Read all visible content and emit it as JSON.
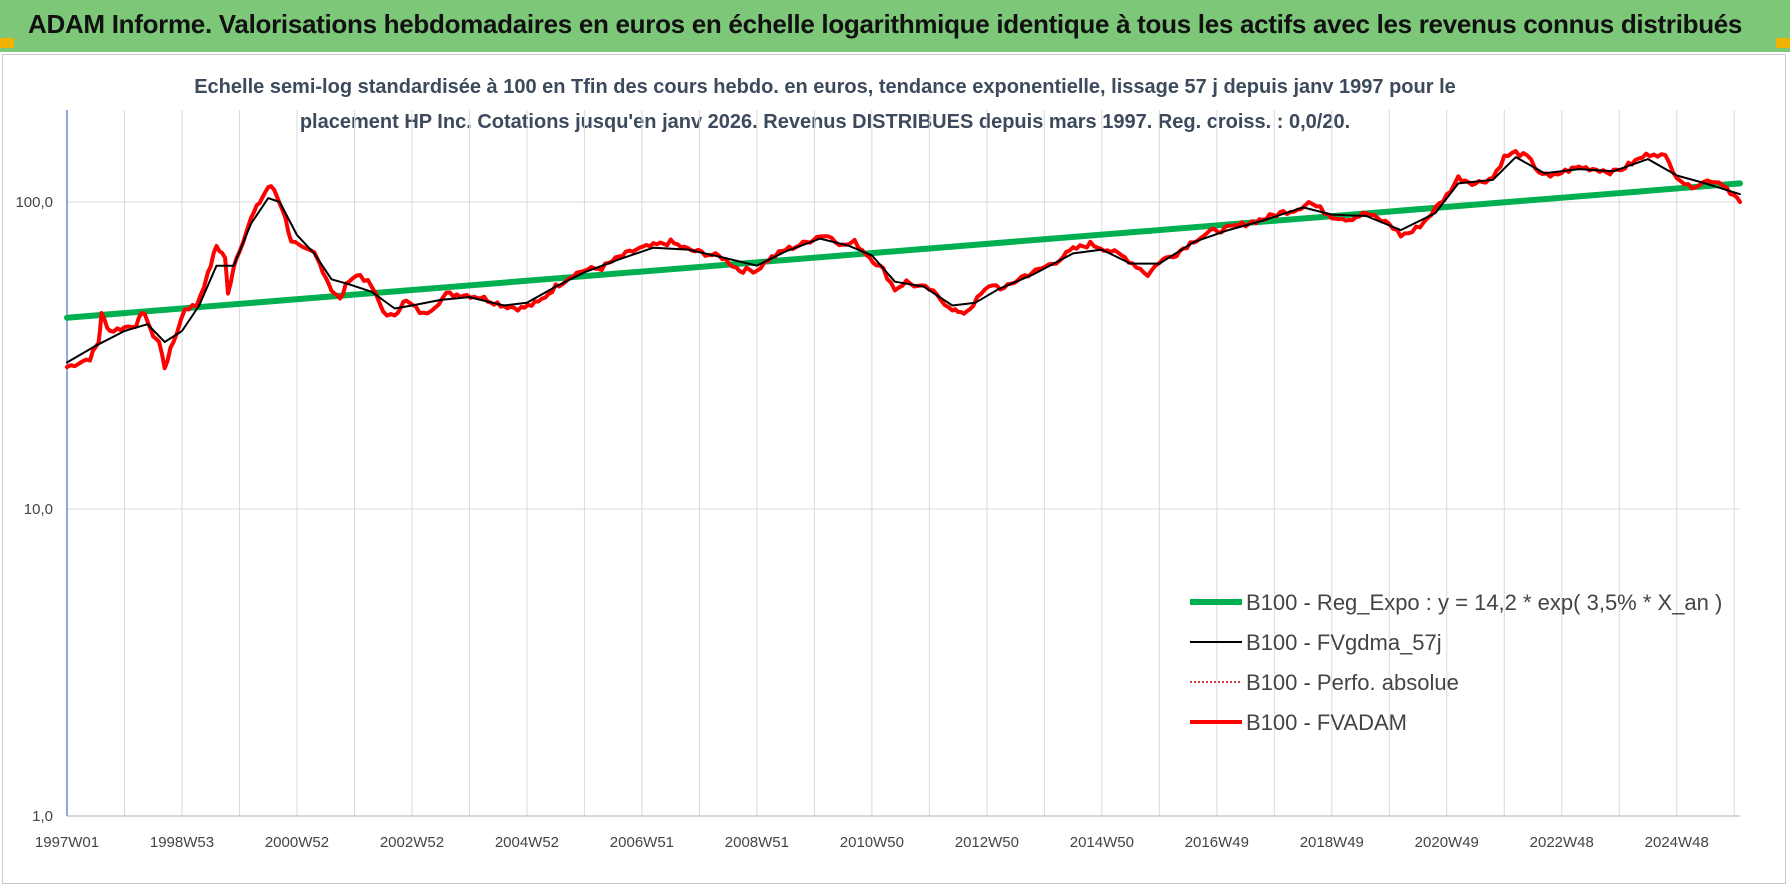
{
  "header": {
    "title": "ADAM Informe. Valorisations hebdomadaires en euros en échelle logarithmique identique à tous les actifs avec les revenus connus distribués"
  },
  "colors": {
    "header_bg": "#7dc878",
    "corner": "#f0b400",
    "regression": "#00b050",
    "smoothed": "#000000",
    "absolute": "#c00000",
    "fvadam": "#ff0000",
    "grid": "#d9d9d9"
  },
  "chart_data": {
    "type": "line",
    "title_line1": "Echelle semi-log standardisée à 100 en Tfin des cours hebdo. en euros, tendance exponentielle, lissage 57 j depuis janv 1997 pour le",
    "title_line2": "placement HP Inc. Cotations jusqu'en janv 2026. Revenus DISTRIBUES depuis mars 1997. Reg. croiss. : 0,0/20.",
    "yscale": "log",
    "ylim": [
      1,
      170
    ],
    "y_ticks": [
      {
        "value": 1,
        "label": "1,0"
      },
      {
        "value": 10,
        "label": "10,0"
      },
      {
        "value": 100,
        "label": "100,0"
      }
    ],
    "xlim": [
      1997.0,
      2026.1
    ],
    "x_ticks": [
      {
        "t": 1997.0,
        "label": "1997W01"
      },
      {
        "t": 1999.0,
        "label": "1998W53"
      },
      {
        "t": 2001.0,
        "label": "2000W52"
      },
      {
        "t": 2003.0,
        "label": "2002W52"
      },
      {
        "t": 2005.0,
        "label": "2004W52"
      },
      {
        "t": 2007.0,
        "label": "2006W51"
      },
      {
        "t": 2009.0,
        "label": "2008W51"
      },
      {
        "t": 2011.0,
        "label": "2010W50"
      },
      {
        "t": 2013.0,
        "label": "2012W50"
      },
      {
        "t": 2015.0,
        "label": "2014W50"
      },
      {
        "t": 2017.0,
        "label": "2016W49"
      },
      {
        "t": 2019.0,
        "label": "2018W49"
      },
      {
        "t": 2021.0,
        "label": "2020W49"
      },
      {
        "t": 2023.0,
        "label": "2022W48"
      },
      {
        "t": 2025.0,
        "label": "2024W48"
      }
    ],
    "legend": {
      "position": "lower-right",
      "entries": [
        {
          "key": "regression",
          "label": "B100 - Reg_Expo : y = 14,2 * exp( 3,5% *  X_an )"
        },
        {
          "key": "smoothed",
          "label": "B100 - FVgdma_57j"
        },
        {
          "key": "absolute",
          "label": "B100 - Perfo. absolue"
        },
        {
          "key": "fvadam",
          "label": "B100 - FVADAM"
        }
      ]
    },
    "series": [
      {
        "key": "regression",
        "name": "B100 - Reg_Expo",
        "points": [
          [
            1997.0,
            42
          ],
          [
            2026.1,
            115
          ]
        ]
      },
      {
        "key": "fvadam",
        "name": "B100 - FVADAM",
        "points": [
          [
            1997.0,
            29
          ],
          [
            1997.2,
            30
          ],
          [
            1997.4,
            31
          ],
          [
            1997.55,
            35
          ],
          [
            1997.6,
            43
          ],
          [
            1997.75,
            38
          ],
          [
            1998.0,
            39
          ],
          [
            1998.2,
            40
          ],
          [
            1998.35,
            44
          ],
          [
            1998.45,
            38
          ],
          [
            1998.6,
            35
          ],
          [
            1998.7,
            29
          ],
          [
            1998.85,
            35
          ],
          [
            1999.05,
            45
          ],
          [
            1999.25,
            46
          ],
          [
            1999.45,
            58
          ],
          [
            1999.6,
            72
          ],
          [
            1999.75,
            66
          ],
          [
            1999.8,
            50
          ],
          [
            1999.9,
            62
          ],
          [
            2000.0,
            70
          ],
          [
            2000.2,
            88
          ],
          [
            2000.35,
            100
          ],
          [
            2000.5,
            112
          ],
          [
            2000.6,
            110
          ],
          [
            2000.75,
            95
          ],
          [
            2000.9,
            75
          ],
          [
            2001.1,
            70
          ],
          [
            2001.3,
            68
          ],
          [
            2001.45,
            60
          ],
          [
            2001.6,
            52
          ],
          [
            2001.75,
            48
          ],
          [
            2001.9,
            56
          ],
          [
            2002.1,
            58
          ],
          [
            2002.3,
            53
          ],
          [
            2002.5,
            44
          ],
          [
            2002.7,
            42
          ],
          [
            2002.85,
            48
          ],
          [
            2003.0,
            46
          ],
          [
            2003.2,
            43
          ],
          [
            2003.4,
            46
          ],
          [
            2003.6,
            50
          ],
          [
            2003.9,
            50
          ],
          [
            2004.2,
            49
          ],
          [
            2004.6,
            46
          ],
          [
            2004.9,
            45
          ],
          [
            2005.2,
            47
          ],
          [
            2005.5,
            53
          ],
          [
            2005.8,
            58
          ],
          [
            2006.0,
            60
          ],
          [
            2006.3,
            61
          ],
          [
            2006.6,
            66
          ],
          [
            2006.9,
            70
          ],
          [
            2007.2,
            72
          ],
          [
            2007.5,
            74
          ],
          [
            2007.8,
            70
          ],
          [
            2008.1,
            68
          ],
          [
            2008.4,
            66
          ],
          [
            2008.7,
            60
          ],
          [
            2009.0,
            60
          ],
          [
            2009.2,
            65
          ],
          [
            2009.5,
            70
          ],
          [
            2009.8,
            73
          ],
          [
            2010.1,
            78
          ],
          [
            2010.3,
            77
          ],
          [
            2010.5,
            72
          ],
          [
            2010.7,
            74
          ],
          [
            2010.9,
            68
          ],
          [
            2011.2,
            60
          ],
          [
            2011.4,
            52
          ],
          [
            2011.6,
            55
          ],
          [
            2011.8,
            53
          ],
          [
            2012.0,
            52
          ],
          [
            2012.2,
            48
          ],
          [
            2012.4,
            45
          ],
          [
            2012.55,
            43
          ],
          [
            2012.7,
            45
          ],
          [
            2012.9,
            50
          ],
          [
            2013.1,
            54
          ],
          [
            2013.3,
            52
          ],
          [
            2013.6,
            57
          ],
          [
            2013.9,
            60
          ],
          [
            2014.2,
            64
          ],
          [
            2014.5,
            70
          ],
          [
            2014.8,
            73
          ],
          [
            2015.1,
            70
          ],
          [
            2015.4,
            66
          ],
          [
            2015.6,
            62
          ],
          [
            2015.8,
            58
          ],
          [
            2016.0,
            64
          ],
          [
            2016.3,
            68
          ],
          [
            2016.6,
            75
          ],
          [
            2016.9,
            80
          ],
          [
            2017.2,
            82
          ],
          [
            2017.5,
            85
          ],
          [
            2017.8,
            88
          ],
          [
            2018.1,
            92
          ],
          [
            2018.4,
            95
          ],
          [
            2018.6,
            100
          ],
          [
            2018.8,
            95
          ],
          [
            2019.0,
            90
          ],
          [
            2019.3,
            88
          ],
          [
            2019.6,
            92
          ],
          [
            2019.8,
            88
          ],
          [
            2020.0,
            85
          ],
          [
            2020.2,
            78
          ],
          [
            2020.4,
            80
          ],
          [
            2020.6,
            86
          ],
          [
            2020.8,
            95
          ],
          [
            2021.0,
            105
          ],
          [
            2021.2,
            120
          ],
          [
            2021.5,
            115
          ],
          [
            2021.8,
            120
          ],
          [
            2022.0,
            140
          ],
          [
            2022.2,
            145
          ],
          [
            2022.4,
            140
          ],
          [
            2022.6,
            126
          ],
          [
            2022.8,
            120
          ],
          [
            2023.0,
            125
          ],
          [
            2023.3,
            130
          ],
          [
            2023.6,
            128
          ],
          [
            2023.9,
            125
          ],
          [
            2024.1,
            130
          ],
          [
            2024.4,
            140
          ],
          [
            2024.6,
            145
          ],
          [
            2024.8,
            140
          ],
          [
            2025.0,
            122
          ],
          [
            2025.2,
            112
          ],
          [
            2025.4,
            115
          ],
          [
            2025.6,
            118
          ],
          [
            2025.8,
            115
          ],
          [
            2026.0,
            105
          ],
          [
            2026.1,
            100
          ]
        ]
      },
      {
        "key": "smoothed",
        "name": "B100 - FVgdma_57j",
        "points": [
          [
            1997.0,
            30
          ],
          [
            1997.5,
            34
          ],
          [
            1998.0,
            38
          ],
          [
            1998.4,
            40
          ],
          [
            1998.7,
            35
          ],
          [
            1999.0,
            38
          ],
          [
            1999.3,
            46
          ],
          [
            1999.6,
            62
          ],
          [
            1999.9,
            62
          ],
          [
            2000.2,
            85
          ],
          [
            2000.5,
            103
          ],
          [
            2000.7,
            100
          ],
          [
            2001.0,
            78
          ],
          [
            2001.3,
            68
          ],
          [
            2001.6,
            56
          ],
          [
            2001.9,
            54
          ],
          [
            2002.3,
            51
          ],
          [
            2002.7,
            45
          ],
          [
            2003.0,
            46
          ],
          [
            2003.5,
            48
          ],
          [
            2004.0,
            49
          ],
          [
            2004.6,
            46
          ],
          [
            2005.0,
            47
          ],
          [
            2005.5,
            53
          ],
          [
            2006.0,
            59
          ],
          [
            2006.6,
            65
          ],
          [
            2007.2,
            71
          ],
          [
            2007.8,
            70
          ],
          [
            2008.4,
            66
          ],
          [
            2009.0,
            62
          ],
          [
            2009.5,
            69
          ],
          [
            2010.1,
            76
          ],
          [
            2010.6,
            72
          ],
          [
            2011.0,
            67
          ],
          [
            2011.4,
            55
          ],
          [
            2011.9,
            53
          ],
          [
            2012.4,
            46
          ],
          [
            2012.8,
            47
          ],
          [
            2013.2,
            52
          ],
          [
            2013.8,
            58
          ],
          [
            2014.5,
            68
          ],
          [
            2015.0,
            70
          ],
          [
            2015.5,
            63
          ],
          [
            2016.0,
            63
          ],
          [
            2016.6,
            74
          ],
          [
            2017.2,
            81
          ],
          [
            2017.8,
            87
          ],
          [
            2018.5,
            96
          ],
          [
            2019.0,
            91
          ],
          [
            2019.6,
            90
          ],
          [
            2020.2,
            81
          ],
          [
            2020.8,
            92
          ],
          [
            2021.2,
            115
          ],
          [
            2021.8,
            118
          ],
          [
            2022.2,
            140
          ],
          [
            2022.7,
            124
          ],
          [
            2023.3,
            128
          ],
          [
            2023.9,
            126
          ],
          [
            2024.5,
            138
          ],
          [
            2025.0,
            122
          ],
          [
            2025.5,
            115
          ],
          [
            2026.1,
            106
          ]
        ]
      }
    ]
  }
}
